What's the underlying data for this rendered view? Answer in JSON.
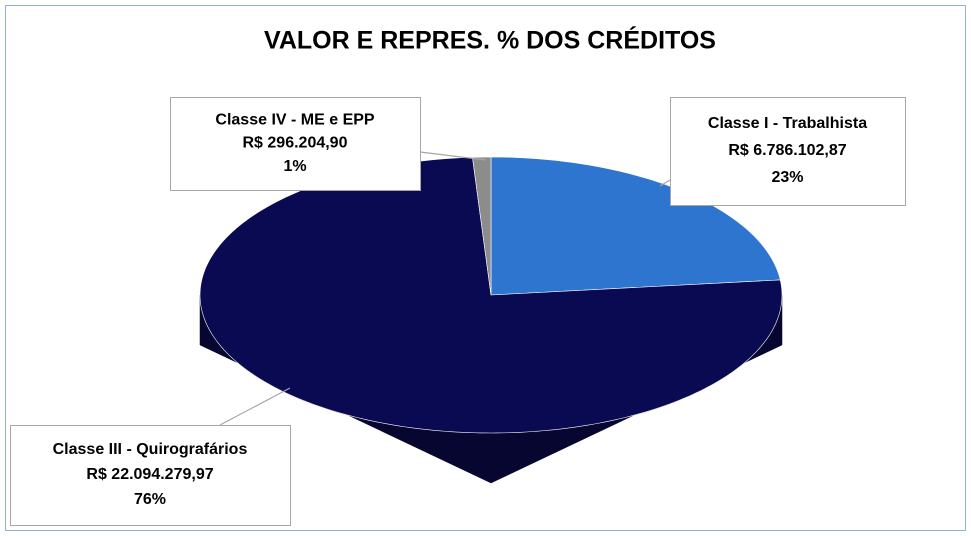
{
  "chart_data": {
    "type": "pie",
    "title": "VALOR E REPRES. % DOS CRÉDITOS",
    "categories": [
      "Classe I - Trabalhista",
      "Classe III - Quirografários",
      "Classe IV - ME e EPP"
    ],
    "values": [
      6786102.87,
      22094279.97,
      296204.9
    ],
    "value_labels": [
      "R$ 6.786.102,87",
      "R$ 22.094.279,97",
      "R$ 296.204,90"
    ],
    "percentages": [
      23,
      76,
      1
    ],
    "percentage_labels": [
      "23%",
      "76%",
      "1%"
    ],
    "colors": [
      "#2e75d0",
      "#0a0a52",
      "#8c8c8c"
    ]
  }
}
